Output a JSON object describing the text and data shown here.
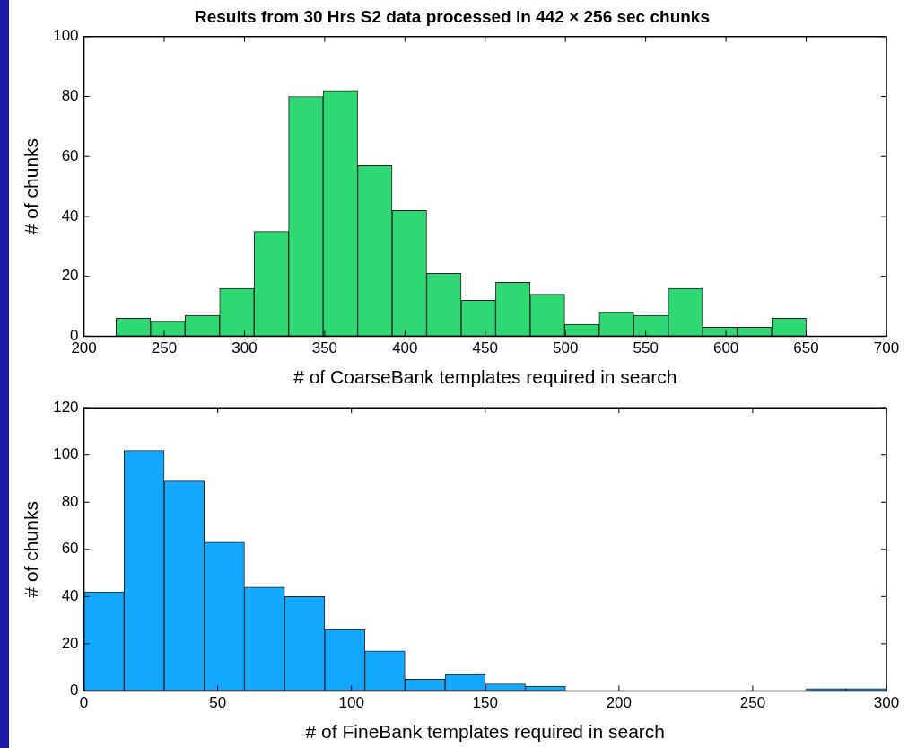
{
  "chart_data": [
    {
      "type": "histogram",
      "title": "Results from 30 Hrs S2 data processed in 442 × 256 sec chunks",
      "xlabel": "# of CoarseBank templates required in search",
      "ylabel": "# of chunks",
      "color": "#2ed873",
      "bins": [
        220,
        241.5,
        263,
        284.5,
        306,
        327.5,
        349,
        370.5,
        392,
        413.5,
        435,
        456.5,
        478,
        499.5,
        521,
        542.5,
        564,
        585.5,
        607,
        628.5,
        650
      ],
      "values": [
        6,
        5,
        7,
        16,
        35,
        80,
        82,
        57,
        42,
        21,
        12,
        18,
        14,
        4,
        8,
        7,
        16,
        3,
        3,
        6
      ],
      "xlim": [
        200,
        700
      ],
      "xticks": [
        200,
        250,
        300,
        350,
        400,
        450,
        500,
        550,
        600,
        650,
        700
      ],
      "ylim": [
        0,
        100
      ],
      "yticks": [
        0,
        20,
        40,
        60,
        80,
        100
      ],
      "grid": false,
      "legend": false
    },
    {
      "type": "histogram",
      "xlabel": "# of FineBank templates required in search",
      "ylabel": "# of chunks",
      "color": "#12a8ff",
      "bins": [
        0,
        15,
        30,
        45,
        60,
        75,
        90,
        105,
        120,
        135,
        150,
        165,
        180,
        195,
        210,
        225,
        240,
        255,
        270,
        285,
        300
      ],
      "values": [
        42,
        102,
        89,
        63,
        44,
        40,
        26,
        17,
        5,
        7,
        3,
        2,
        0,
        0,
        0,
        0,
        0,
        0,
        1,
        1
      ],
      "xlim": [
        0,
        300
      ],
      "xticks": [
        0,
        50,
        100,
        150,
        200,
        250,
        300
      ],
      "ylim": [
        0,
        120
      ],
      "yticks": [
        0,
        20,
        40,
        60,
        80,
        100,
        120
      ],
      "grid": false,
      "legend": false
    }
  ]
}
